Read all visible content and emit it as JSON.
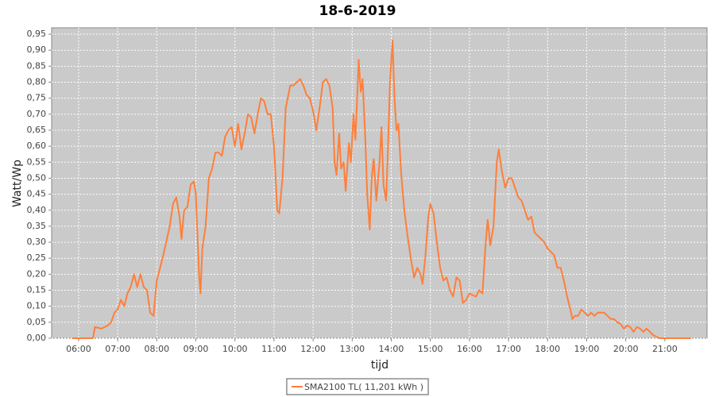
{
  "chart_data": {
    "type": "line",
    "title": "18-6-2019",
    "xlabel": "tijd",
    "ylabel": "Watt/Wp",
    "x": [
      5.833,
      6.367,
      6.417,
      6.583,
      6.75,
      6.833,
      6.917,
      7,
      7.083,
      7.167,
      7.25,
      7.333,
      7.417,
      7.5,
      7.583,
      7.667,
      7.75,
      7.833,
      7.917,
      8,
      8.167,
      8.333,
      8.417,
      8.5,
      8.583,
      8.633,
      8.7,
      8.783,
      8.867,
      8.95,
      9,
      9.083,
      9.117,
      9.167,
      9.25,
      9.333,
      9.417,
      9.5,
      9.583,
      9.667,
      9.75,
      9.833,
      9.917,
      10,
      10.083,
      10.167,
      10.25,
      10.333,
      10.417,
      10.5,
      10.583,
      10.667,
      10.75,
      10.833,
      10.917,
      11,
      11.083,
      11.133,
      11.217,
      11.3,
      11.417,
      11.5,
      11.583,
      11.667,
      11.75,
      11.833,
      11.917,
      12,
      12.083,
      12.167,
      12.25,
      12.333,
      12.417,
      12.5,
      12.55,
      12.6,
      12.667,
      12.717,
      12.783,
      12.833,
      12.917,
      12.967,
      13.033,
      13.083,
      13.167,
      13.217,
      13.267,
      13.333,
      13.383,
      13.45,
      13.5,
      13.55,
      13.617,
      13.7,
      13.75,
      13.8,
      13.867,
      13.917,
      13.967,
      14.033,
      14.083,
      14.133,
      14.183,
      14.25,
      14.333,
      14.417,
      14.5,
      14.583,
      14.667,
      14.75,
      14.8,
      14.867,
      14.95,
      15,
      15.083,
      15.167,
      15.25,
      15.333,
      15.417,
      15.5,
      15.583,
      15.667,
      15.75,
      15.833,
      15.917,
      16,
      16.167,
      16.25,
      16.333,
      16.417,
      16.467,
      16.533,
      16.617,
      16.7,
      16.75,
      16.833,
      16.917,
      17,
      17.083,
      17.167,
      17.25,
      17.333,
      17.417,
      17.5,
      17.583,
      17.667,
      17.75,
      17.833,
      17.917,
      18,
      18.083,
      18.167,
      18.25,
      18.333,
      18.417,
      18.5,
      18.583,
      18.633,
      18.7,
      18.783,
      18.867,
      18.95,
      19.033,
      19.117,
      19.2,
      19.283,
      19.367,
      19.45,
      19.533,
      19.617,
      19.7,
      19.783,
      19.867,
      19.95,
      20.033,
      20.117,
      20.2,
      20.283,
      20.367,
      20.45,
      20.533,
      20.617,
      20.7,
      20.783,
      20.867,
      21.667
    ],
    "series": [
      {
        "name": "SMA2100 TL( 11,201 kWh )",
        "color": "#ff7f3a",
        "values": [
          0,
          0,
          0.035,
          0.03,
          0.04,
          0.05,
          0.08,
          0.09,
          0.12,
          0.1,
          0.14,
          0.16,
          0.2,
          0.16,
          0.2,
          0.16,
          0.15,
          0.08,
          0.07,
          0.18,
          0.26,
          0.35,
          0.42,
          0.44,
          0.38,
          0.31,
          0.4,
          0.41,
          0.48,
          0.49,
          0.45,
          0.2,
          0.14,
          0.28,
          0.35,
          0.5,
          0.53,
          0.58,
          0.58,
          0.57,
          0.63,
          0.65,
          0.66,
          0.6,
          0.67,
          0.59,
          0.64,
          0.7,
          0.69,
          0.64,
          0.7,
          0.75,
          0.74,
          0.7,
          0.7,
          0.6,
          0.4,
          0.39,
          0.5,
          0.72,
          0.79,
          0.79,
          0.8,
          0.81,
          0.79,
          0.76,
          0.75,
          0.71,
          0.65,
          0.72,
          0.8,
          0.81,
          0.79,
          0.72,
          0.55,
          0.51,
          0.64,
          0.53,
          0.55,
          0.46,
          0.61,
          0.55,
          0.7,
          0.62,
          0.87,
          0.77,
          0.81,
          0.63,
          0.45,
          0.34,
          0.5,
          0.56,
          0.43,
          0.55,
          0.66,
          0.48,
          0.43,
          0.6,
          0.8,
          0.93,
          0.75,
          0.65,
          0.67,
          0.52,
          0.4,
          0.32,
          0.25,
          0.19,
          0.22,
          0.2,
          0.17,
          0.25,
          0.38,
          0.42,
          0.39,
          0.3,
          0.22,
          0.18,
          0.19,
          0.15,
          0.13,
          0.19,
          0.18,
          0.11,
          0.12,
          0.14,
          0.13,
          0.15,
          0.14,
          0.3,
          0.37,
          0.29,
          0.35,
          0.55,
          0.59,
          0.52,
          0.47,
          0.5,
          0.5,
          0.47,
          0.44,
          0.43,
          0.4,
          0.37,
          0.38,
          0.33,
          0.32,
          0.31,
          0.3,
          0.28,
          0.27,
          0.26,
          0.22,
          0.22,
          0.18,
          0.13,
          0.09,
          0.06,
          0.07,
          0.07,
          0.09,
          0.08,
          0.07,
          0.08,
          0.07,
          0.08,
          0.08,
          0.08,
          0.07,
          0.06,
          0.06,
          0.05,
          0.045,
          0.03,
          0.04,
          0.035,
          0.02,
          0.035,
          0.03,
          0.02,
          0.03,
          0.02,
          0.01,
          0.005,
          0,
          0
        ]
      }
    ],
    "xlim": [
      5.31,
      22.08
    ],
    "ylim": [
      0,
      0.97
    ],
    "xticks": [
      {
        "value": 6,
        "label": "06:00"
      },
      {
        "value": 7,
        "label": "07:00"
      },
      {
        "value": 8,
        "label": "08:00"
      },
      {
        "value": 9,
        "label": "09:00"
      },
      {
        "value": 10,
        "label": "10:00"
      },
      {
        "value": 11,
        "label": "11:00"
      },
      {
        "value": 12,
        "label": "12:00"
      },
      {
        "value": 13,
        "label": "13:00"
      },
      {
        "value": 14,
        "label": "14:00"
      },
      {
        "value": 15,
        "label": "15:00"
      },
      {
        "value": 16,
        "label": "16:00"
      },
      {
        "value": 17,
        "label": "17:00"
      },
      {
        "value": 18,
        "label": "18:00"
      },
      {
        "value": 19,
        "label": "19:00"
      },
      {
        "value": 20,
        "label": "20:00"
      },
      {
        "value": 21,
        "label": "21:00"
      }
    ],
    "yticks": [
      {
        "value": 0,
        "label": "0,00"
      },
      {
        "value": 0.05,
        "label": "0,05"
      },
      {
        "value": 0.1,
        "label": "0,10"
      },
      {
        "value": 0.15,
        "label": "0,15"
      },
      {
        "value": 0.2,
        "label": "0,20"
      },
      {
        "value": 0.25,
        "label": "0,25"
      },
      {
        "value": 0.3,
        "label": "0,30"
      },
      {
        "value": 0.35,
        "label": "0,35"
      },
      {
        "value": 0.4,
        "label": "0,40"
      },
      {
        "value": 0.45,
        "label": "0,45"
      },
      {
        "value": 0.5,
        "label": "0,50"
      },
      {
        "value": 0.55,
        "label": "0,55"
      },
      {
        "value": 0.6,
        "label": "0,60"
      },
      {
        "value": 0.65,
        "label": "0,65"
      },
      {
        "value": 0.7,
        "label": "0,70"
      },
      {
        "value": 0.75,
        "label": "0,75"
      },
      {
        "value": 0.8,
        "label": "0,80"
      },
      {
        "value": 0.85,
        "label": "0,85"
      },
      {
        "value": 0.9,
        "label": "0,90"
      },
      {
        "value": 0.95,
        "label": "0,95"
      }
    ],
    "grid": true,
    "legend": "bottom"
  }
}
